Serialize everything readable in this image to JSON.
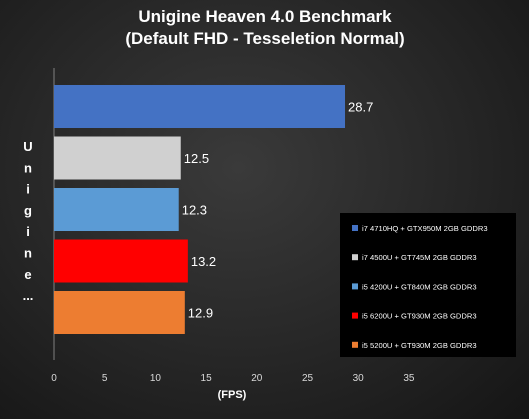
{
  "chart_data": {
    "type": "bar",
    "orientation": "horizontal",
    "title": "Unigine Heaven 4.0 Benchmark",
    "subtitle": "(Default FHD - Tesseletion Normal)",
    "xlabel": "(FPS)",
    "ylabel": "Unigine...",
    "xlim": [
      0,
      35
    ],
    "xticks": [
      0,
      5,
      10,
      15,
      20,
      25,
      30,
      35
    ],
    "grid": false,
    "legend_position": "right",
    "series": [
      {
        "name": "i7 4710HQ + GTX950M 2GB GDDR3",
        "value": 28.7,
        "label": "28.7",
        "color": "#4472C4"
      },
      {
        "name": "i7 4500U + GT745M 2GB GDDR3",
        "value": 12.5,
        "label": "12.5",
        "color": "#D0D0D0"
      },
      {
        "name": "i5 4200U + GT840M 2GB GDDR3",
        "value": 12.3,
        "label": "12.3",
        "color": "#5B9BD5"
      },
      {
        "name": "i5 6200U + GT930M 2GB GDDR3",
        "value": 13.2,
        "label": "13.2",
        "color": "#FF0000"
      },
      {
        "name": "i5 5200U + GT930M 2GB GDDR3",
        "value": 12.9,
        "label": "12.9",
        "color": "#ED7D31"
      }
    ]
  }
}
